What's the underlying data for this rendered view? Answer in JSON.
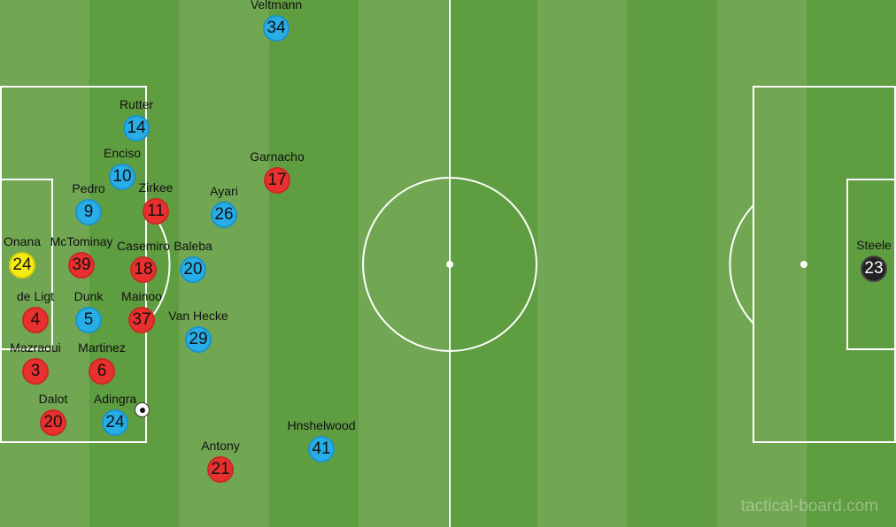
{
  "colors": {
    "team_red": "#e8302e",
    "team_blue": "#27aee8",
    "keeper_red_team": "#f5ec12",
    "keeper_blue_team": "#222222",
    "pitch_light": "#71a752",
    "pitch_dark": "#5f9d41"
  },
  "players": [
    {
      "name": "Veltmann",
      "number": "34",
      "team": "blue"
    },
    {
      "name": "Rutter",
      "number": "14",
      "team": "blue"
    },
    {
      "name": "Enciso",
      "number": "10",
      "team": "blue"
    },
    {
      "name": "Pedro",
      "number": "9",
      "team": "blue"
    },
    {
      "name": "Zirkee",
      "number": "11",
      "team": "red"
    },
    {
      "name": "Ayari",
      "number": "26",
      "team": "blue"
    },
    {
      "name": "Garnacho",
      "number": "17",
      "team": "red"
    },
    {
      "name": "Onana",
      "number": "24",
      "team": "yellow"
    },
    {
      "name": "McTominay",
      "number": "39",
      "team": "red"
    },
    {
      "name": "Baleba",
      "number": "20",
      "team": "blue"
    },
    {
      "name": "Casemiro",
      "number": "18",
      "team": "red"
    },
    {
      "name": "de Ligt",
      "number": "4",
      "team": "red"
    },
    {
      "name": "Dunk",
      "number": "5",
      "team": "blue"
    },
    {
      "name": "Mazraoui",
      "number": "3",
      "team": "red"
    },
    {
      "name": "Martinez",
      "number": "6",
      "team": "red"
    },
    {
      "name": "Mainoo",
      "number": "37",
      "team": "red"
    },
    {
      "name": "Van Hecke",
      "number": "29",
      "team": "blue"
    },
    {
      "name": "Dalot",
      "number": "20",
      "team": "red"
    },
    {
      "name": "Adingra",
      "number": "24",
      "team": "blue"
    },
    {
      "name": "Antony",
      "number": "21",
      "team": "red"
    },
    {
      "name": "Hnshelwood",
      "number": "41",
      "team": "blue"
    },
    {
      "name": "Steele",
      "number": "23",
      "team": "black"
    }
  ],
  "watermark": "tactical-board.com"
}
